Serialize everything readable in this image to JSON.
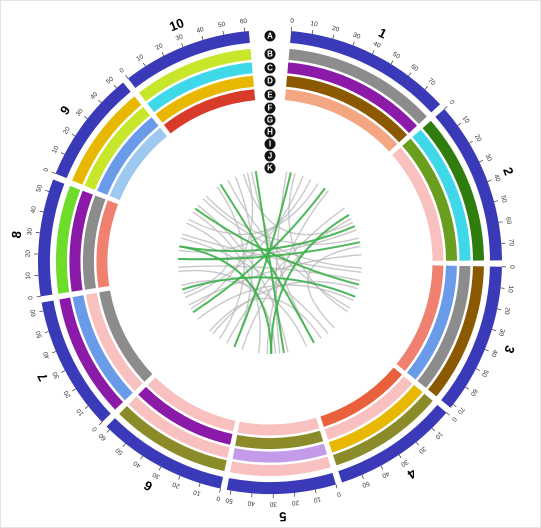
{
  "chart_data": {
    "type": "circos",
    "ring_labels": [
      "A",
      "B",
      "C",
      "D",
      "E",
      "F",
      "G",
      "H",
      "I",
      "J",
      "K"
    ],
    "chromosome_color": "#3a3ab8",
    "chromosomes": [
      {
        "name": "1",
        "length": 80,
        "ticks": [
          0,
          10,
          20,
          30,
          40,
          50,
          60,
          70
        ]
      },
      {
        "name": "2",
        "length": 78,
        "ticks": [
          0,
          10,
          20,
          30,
          40,
          50,
          60,
          70
        ]
      },
      {
        "name": "3",
        "length": 72,
        "ticks": [
          0,
          10,
          20,
          30,
          40,
          50,
          60,
          70
        ]
      },
      {
        "name": "4",
        "length": 60,
        "ticks": [
          0,
          10,
          20,
          30,
          40,
          50
        ]
      },
      {
        "name": "5",
        "length": 52,
        "ticks": [
          0,
          10,
          20,
          30,
          40,
          50
        ]
      },
      {
        "name": "6",
        "length": 62,
        "ticks": [
          0,
          10,
          20,
          30,
          40,
          50,
          60
        ]
      },
      {
        "name": "7",
        "length": 64,
        "ticks": [
          0,
          10,
          20,
          30,
          40,
          50,
          60
        ]
      },
      {
        "name": "8",
        "length": 56,
        "ticks": [
          0,
          10,
          20,
          30,
          40,
          50
        ]
      },
      {
        "name": "9",
        "length": 54,
        "ticks": [
          0,
          10,
          20,
          30,
          40,
          50
        ]
      },
      {
        "name": "10",
        "length": 62,
        "ticks": [
          0,
          10,
          20,
          30,
          40,
          50,
          60
        ]
      }
    ],
    "tracks": [
      {
        "name": "B",
        "colors": [
          "#8c8c8c",
          "#2e7d0e",
          "#8b5a00",
          "#8b8b2a",
          "#f9c0c0",
          "#8b8b2a",
          "#8b1aa8",
          "#6edc2a",
          "#e8b800",
          "#c8e62a"
        ]
      },
      {
        "name": "C",
        "colors": [
          "#8b1aa8",
          "#3fd8e8",
          "#8c8c8c",
          "#e8b800",
          "#c39be8",
          "#f9c0c0",
          "#6a9be8",
          "#8b1aa8",
          "#c8e62a",
          "#3fd8e8"
        ]
      },
      {
        "name": "D",
        "colors": [
          "#8b5a00",
          "#6a9e1f",
          "#6a9be8",
          "#f9c0c0",
          "#8b8b2a",
          "#8b1aa8",
          "#f9c0c0",
          "#8c8c8c",
          "#6a9be8",
          "#e8b800"
        ]
      },
      {
        "name": "E",
        "colors": [
          "#f4a582",
          "#f9c0c0",
          "#f08070",
          "#e8603c",
          "#f9c0c0",
          "#f9c0c0",
          "#8c8c8c",
          "#f08070",
          "#9ec8f0",
          "#d93b2a"
        ]
      }
    ],
    "link_groups": [
      {
        "color": "#b4b4b4",
        "links": [
          [
            "1",
            10,
            "5",
            20
          ],
          [
            "1",
            30,
            "7",
            40
          ],
          [
            "1",
            50,
            "9",
            10
          ],
          [
            "2",
            10,
            "6",
            30
          ],
          [
            "2",
            40,
            "8",
            20
          ],
          [
            "2",
            60,
            "4",
            10
          ],
          [
            "3",
            5,
            "9",
            40
          ],
          [
            "3",
            30,
            "6",
            50
          ],
          [
            "3",
            55,
            "10",
            20
          ],
          [
            "4",
            20,
            "8",
            45
          ],
          [
            "4",
            40,
            "10",
            50
          ],
          [
            "5",
            10,
            "9",
            30
          ],
          [
            "5",
            35,
            "1",
            65
          ],
          [
            "6",
            10,
            "2",
            25
          ],
          [
            "6",
            40,
            "10",
            5
          ],
          [
            "7",
            10,
            "3",
            45
          ],
          [
            "7",
            30,
            "2",
            70
          ],
          [
            "7",
            55,
            "4",
            50
          ],
          [
            "8",
            10,
            "3",
            20
          ],
          [
            "8",
            30,
            "1",
            40
          ],
          [
            "9",
            20,
            "5",
            45
          ],
          [
            "9",
            45,
            "2",
            50
          ],
          [
            "10",
            30,
            "6",
            20
          ],
          [
            "10",
            45,
            "7",
            25
          ],
          [
            "1",
            20,
            "3",
            60
          ],
          [
            "2",
            30,
            "10",
            40
          ],
          [
            "4",
            30,
            "6",
            55
          ],
          [
            "5",
            25,
            "8",
            5
          ],
          [
            "7",
            45,
            "9",
            5
          ],
          [
            "3",
            10,
            "8",
            50
          ]
        ]
      },
      {
        "color": "#3cb04a",
        "links": [
          [
            "2",
            35,
            "8",
            35
          ],
          [
            "2",
            20,
            "5",
            30
          ],
          [
            "8",
            35,
            "5",
            30
          ],
          [
            "1",
            60,
            "7",
            20
          ],
          [
            "3",
            40,
            "7",
            50
          ],
          [
            "10",
            10,
            "4",
            40
          ],
          [
            "9",
            25,
            "3",
            25
          ],
          [
            "6",
            20,
            "1",
            15
          ],
          [
            "8",
            20,
            "2",
            55
          ],
          [
            "5",
            15,
            "10",
            55
          ]
        ]
      }
    ]
  }
}
